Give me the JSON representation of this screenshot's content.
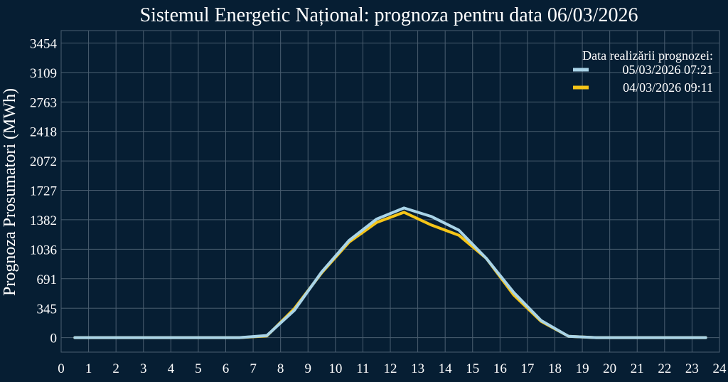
{
  "chart_data": {
    "type": "line",
    "title": "Sistemul Energetic Național: prognoza pentru data 06/03/2026",
    "xlabel": "",
    "ylabel": "Prognoza Prosumatori (MWh)",
    "xlim": [
      0,
      24
    ],
    "ylim": [
      -170,
      3600
    ],
    "xticks": [
      0,
      1,
      2,
      3,
      4,
      5,
      6,
      7,
      8,
      9,
      10,
      11,
      12,
      13,
      14,
      15,
      16,
      17,
      18,
      19,
      20,
      21,
      22,
      23,
      24
    ],
    "yticks": [
      0,
      345,
      691,
      1036,
      1382,
      1727,
      2072,
      2418,
      2763,
      3109,
      3454
    ],
    "grid": true,
    "legend": {
      "title": "Data realizării prognozei:",
      "placement": "top-right"
    },
    "x": [
      0.5,
      1.5,
      2.5,
      3.5,
      4.5,
      5.5,
      6.5,
      7.5,
      8.5,
      9.5,
      10.5,
      11.5,
      12.5,
      13.5,
      14.5,
      15.5,
      16.5,
      17.5,
      18.5,
      19.5,
      20.5,
      21.5,
      22.5,
      23.5
    ],
    "series": [
      {
        "name": "04/03/2026 09:11",
        "color": "#f5c518",
        "values": [
          0,
          0,
          0,
          0,
          0,
          0,
          0,
          20,
          340,
          760,
          1120,
          1350,
          1470,
          1320,
          1200,
          930,
          500,
          190,
          15,
          0,
          0,
          0,
          0,
          0
        ]
      },
      {
        "name": "05/03/2026 07:21",
        "color": "#a9d4e8",
        "values": [
          0,
          0,
          0,
          0,
          0,
          0,
          0,
          25,
          320,
          770,
          1140,
          1390,
          1520,
          1420,
          1260,
          930,
          530,
          200,
          15,
          0,
          0,
          0,
          0,
          0
        ]
      }
    ],
    "legend_order": [
      1,
      0
    ]
  },
  "colors": {
    "background": "#061e33",
    "grid": "#4a5e70",
    "text": "#ffffff"
  }
}
